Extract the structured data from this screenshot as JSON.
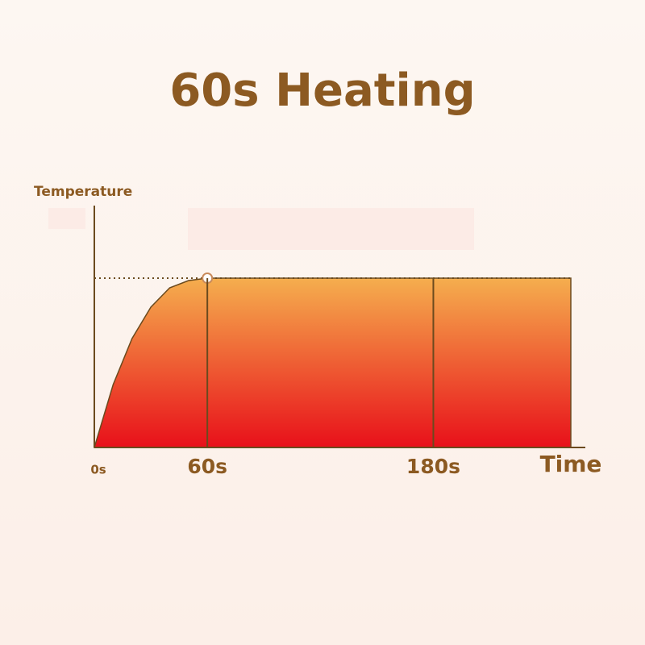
{
  "chart_data": {
    "type": "area",
    "title": "60s Heating",
    "y_label": "Temperature",
    "x_label": "Time",
    "x": [
      0,
      10,
      20,
      30,
      40,
      50,
      60,
      180,
      253
    ],
    "values": [
      0,
      26,
      45,
      58,
      66,
      69,
      70,
      70,
      70
    ],
    "color_top": "#f5ae4e",
    "color_bottom": "#e8101a",
    "xlim": [
      0,
      253
    ],
    "ylim": [
      0,
      100
    ],
    "xticks": [
      {
        "value": 0,
        "label": "0s"
      },
      {
        "value": 60,
        "label": "60s"
      },
      {
        "value": 180,
        "label": "180s"
      }
    ]
  }
}
